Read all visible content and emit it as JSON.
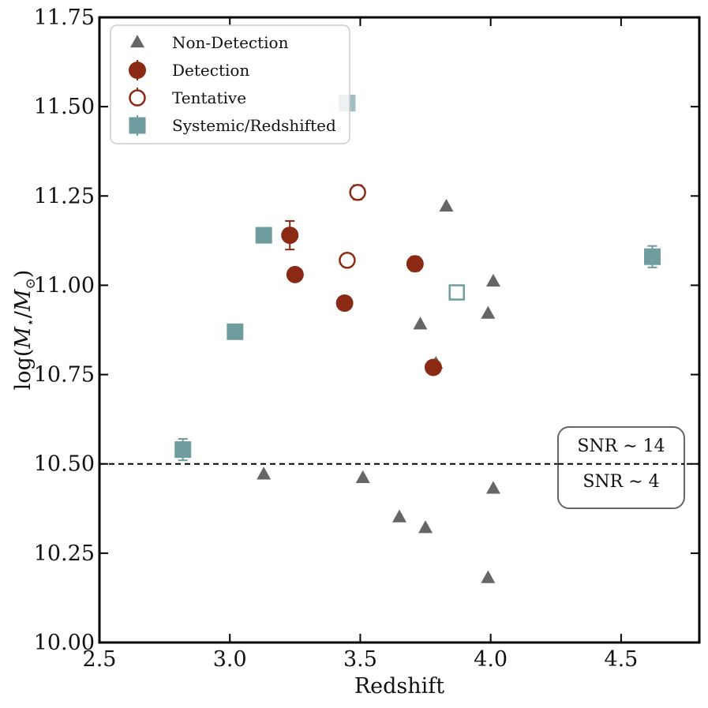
{
  "chart_data": {
    "type": "scatter",
    "title": "",
    "xlabel": "Redshift",
    "ylabel": "log(M★/M⊙)",
    "xlim": [
      2.5,
      4.8
    ],
    "ylim": [
      10.0,
      11.75
    ],
    "xticks": [
      2.5,
      3.0,
      3.5,
      4.0,
      4.5
    ],
    "xtick_labels": [
      "2.5",
      "3.0",
      "3.5",
      "4.0",
      "4.5"
    ],
    "yticks": [
      10.0,
      10.25,
      10.5,
      10.75,
      11.0,
      11.25,
      11.5,
      11.75
    ],
    "ytick_labels": [
      "10.00",
      "10.25",
      "10.50",
      "10.75",
      "11.00",
      "11.25",
      "11.50",
      "11.75"
    ],
    "threshold_line": {
      "y": 10.5,
      "style": "dashed"
    },
    "annotation": {
      "lines": [
        "SNR ∼ 14",
        "SNR ∼ 4"
      ],
      "placement": "right, straddling the dashed line"
    },
    "legend": {
      "placement": "upper-left",
      "entries": [
        {
          "label": "Non-Detection",
          "marker": "triangle"
        },
        {
          "label": "Detection",
          "marker": "filled-circle"
        },
        {
          "label": "Tentative",
          "marker": "open-circle"
        },
        {
          "label": "Systemic/Redshifted",
          "marker": "filled-square"
        }
      ]
    },
    "colors": {
      "nondetection": "#666666",
      "detection": "#8b2a14",
      "tentative": "#8b2a14",
      "systemic": "#6e9c9f"
    },
    "series": [
      {
        "name": "Non-Detection",
        "points": [
          {
            "x": 3.13,
            "y": 10.47
          },
          {
            "x": 3.51,
            "y": 10.46
          },
          {
            "x": 3.65,
            "y": 10.35
          },
          {
            "x": 3.75,
            "y": 10.32
          },
          {
            "x": 3.99,
            "y": 10.18
          },
          {
            "x": 4.01,
            "y": 10.43
          },
          {
            "x": 3.73,
            "y": 10.89
          },
          {
            "x": 3.79,
            "y": 10.78
          },
          {
            "x": 3.83,
            "y": 11.22
          },
          {
            "x": 3.99,
            "y": 10.92
          },
          {
            "x": 4.01,
            "y": 11.01
          }
        ]
      },
      {
        "name": "Detection",
        "points": [
          {
            "x": 3.23,
            "y": 11.14,
            "yerr": 0.04
          },
          {
            "x": 3.25,
            "y": 11.03
          },
          {
            "x": 3.44,
            "y": 10.95
          },
          {
            "x": 3.71,
            "y": 11.06,
            "yerr": 0.02
          },
          {
            "x": 3.78,
            "y": 10.77
          }
        ]
      },
      {
        "name": "Tentative",
        "points": [
          {
            "x": 3.45,
            "y": 11.07
          },
          {
            "x": 3.49,
            "y": 11.26,
            "yerr": 0.02
          }
        ]
      },
      {
        "name": "Systemic/Redshifted",
        "points": [
          {
            "x": 2.82,
            "y": 10.54,
            "yerr": 0.03
          },
          {
            "x": 3.02,
            "y": 10.87
          },
          {
            "x": 3.13,
            "y": 11.14
          },
          {
            "x": 3.45,
            "y": 11.51,
            "alpha": 0.65
          },
          {
            "x": 3.87,
            "y": 10.98,
            "hollow": true,
            "yerr": 0.02
          },
          {
            "x": 4.62,
            "y": 11.08,
            "yerr": 0.03
          }
        ]
      }
    ]
  }
}
